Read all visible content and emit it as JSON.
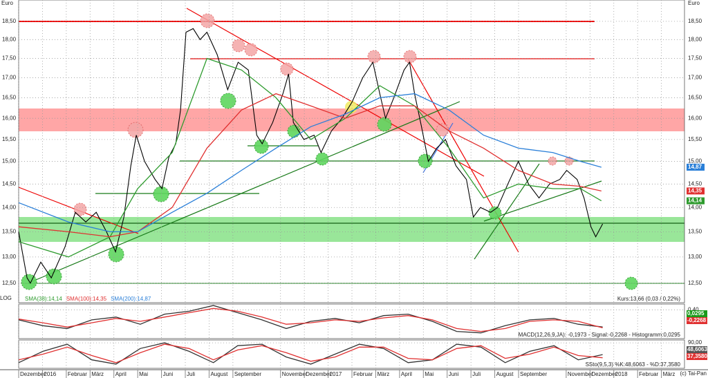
{
  "labels": {
    "currency": "Euro",
    "log": "LOG",
    "copyright": "(c) Tai-Pan"
  },
  "chart_data": [
    {
      "type": "line",
      "log": true,
      "grid": true,
      "caption": "Kurs:13,66 (0,03 / 0,22%)",
      "xlim": [
        0,
        27.97
      ],
      "ylim": [
        12.14,
        19.1
      ],
      "xticks": [
        {
          "value": 0,
          "label": "Dezember"
        },
        {
          "value": 1,
          "label": "2016"
        },
        {
          "value": 2,
          "label": "Februar"
        },
        {
          "value": 3,
          "label": "März"
        },
        {
          "value": 4,
          "label": "April"
        },
        {
          "value": 5,
          "label": "Mai"
        },
        {
          "value": 6,
          "label": "Juni"
        },
        {
          "value": 7,
          "label": "Juli"
        },
        {
          "value": 8,
          "label": "August"
        },
        {
          "value": 9,
          "label": "September"
        },
        {
          "value": 11,
          "label": "November"
        },
        {
          "value": 12,
          "label": "Dezember"
        },
        {
          "value": 13,
          "label": "2017"
        },
        {
          "value": 14,
          "label": "Februar"
        },
        {
          "value": 15,
          "label": "März"
        },
        {
          "value": 16,
          "label": "April"
        },
        {
          "value": 17,
          "label": "Mai"
        },
        {
          "value": 18,
          "label": "Juni"
        },
        {
          "value": 19,
          "label": "Juli"
        },
        {
          "value": 20,
          "label": "August"
        },
        {
          "value": 21,
          "label": "September"
        },
        {
          "value": 23,
          "label": "November"
        },
        {
          "value": 24,
          "label": "Dezember"
        },
        {
          "value": 25,
          "label": "2018"
        },
        {
          "value": 26,
          "label": "Februar"
        },
        {
          "value": 27,
          "label": "März"
        }
      ],
      "yticks": [
        {
          "value": 12.5,
          "label": "12,50"
        },
        {
          "value": 13,
          "label": "13,00"
        },
        {
          "value": 13.5,
          "label": "13,50"
        },
        {
          "value": 14,
          "label": "14,00"
        },
        {
          "value": 14.5,
          "label": "14,50"
        },
        {
          "value": 15,
          "label": "15,00"
        },
        {
          "value": 15.5,
          "label": "15,50"
        },
        {
          "value": 16,
          "label": "16,00"
        },
        {
          "value": 16.5,
          "label": "16,50"
        },
        {
          "value": 17,
          "label": "17,00"
        },
        {
          "value": 17.5,
          "label": "17,50"
        },
        {
          "value": 18,
          "label": "18,00"
        },
        {
          "value": 18.5,
          "label": "18,50"
        }
      ],
      "series": [
        {
          "color": "#000000",
          "x": [
            0,
            0.35,
            0.49,
            0.93,
            1.37,
            1.95,
            2.38,
            2.82,
            3.26,
            3.69,
            4.07,
            4.42,
            4.71,
            4.94,
            5.29,
            5.73,
            6.02,
            6.31,
            6.6,
            6.8,
            7.03,
            7.33,
            7.62,
            7.91,
            8.34,
            8.78,
            9.22,
            9.65,
            10.0,
            10.23,
            10.67,
            11.1,
            11.34,
            11.54,
            11.98,
            12.41,
            12.7,
            13.14,
            13.58,
            14.01,
            14.45,
            14.88,
            15.17,
            15.41,
            15.76,
            16.19,
            16.42,
            16.63,
            16.92,
            17.21,
            17.56,
            17.93,
            18.37,
            18.81,
            19.1,
            19.4,
            19.83,
            20.12,
            20.55,
            20.99,
            21.42,
            21.86,
            22.3,
            22.73,
            23.02,
            23.46,
            23.75,
            24.04,
            24.24,
            24.53
          ],
          "values": [
            13.5,
            12.6,
            12.5,
            12.9,
            12.6,
            13.2,
            13.9,
            13.7,
            13.9,
            13.5,
            13.1,
            13.8,
            14.9,
            15.6,
            15.0,
            14.6,
            14.4,
            15.1,
            15.4,
            16.2,
            18.2,
            18.3,
            18.0,
            18.2,
            17.6,
            16.7,
            17.4,
            17.2,
            15.6,
            15.4,
            15.9,
            16.6,
            17.1,
            15.9,
            15.5,
            15.6,
            15.2,
            15.7,
            16.0,
            16.4,
            17.0,
            17.4,
            16.6,
            16.0,
            16.5,
            17.2,
            17.4,
            16.6,
            15.8,
            15.0,
            15.3,
            15.5,
            14.9,
            14.6,
            13.8,
            14.0,
            13.9,
            14.0,
            14.5,
            15.0,
            14.5,
            14.2,
            14.5,
            14.6,
            14.8,
            14.6,
            14.2,
            13.6,
            13.4,
            13.66
          ]
        },
        {
          "name": "SMA(38):14,14",
          "tag": "14,14",
          "color": "#2e9b2e",
          "x": [
            0,
            2.09,
            3.84,
            5,
            6.45,
            7.91,
            9.36,
            10.81,
            12.27,
            13.72,
            15.17,
            16.63,
            18.08,
            19.53,
            20.99,
            22.44,
            23.6,
            24.48
          ],
          "values": [
            13.3,
            13.0,
            13.4,
            14.4,
            15.2,
            17.5,
            17.2,
            16.5,
            15.5,
            16.0,
            16.8,
            16.3,
            15.3,
            14.2,
            14.5,
            14.4,
            14.4,
            14.14
          ]
        },
        {
          "name": "SMA(100):14,35",
          "tag": "14,35",
          "color": "#e03030",
          "x": [
            0,
            2.09,
            3.84,
            5,
            6.45,
            7.91,
            9.36,
            10.81,
            12.27,
            13.72,
            15.17,
            16.63,
            18.08,
            19.53,
            20.99,
            22.44,
            23.6,
            24.48
          ],
          "values": [
            13.6,
            13.5,
            13.4,
            13.5,
            14.0,
            15.3,
            16.2,
            16.6,
            16.3,
            16.0,
            16.3,
            16.3,
            15.7,
            15.3,
            14.8,
            14.5,
            14.45,
            14.35
          ]
        },
        {
          "name": "SMA(200):14,87",
          "tag": "14,87",
          "color": "#2a7fd8",
          "x": [
            0,
            2.09,
            3.84,
            5,
            6.45,
            7.91,
            9.36,
            10.81,
            12.27,
            13.72,
            15.17,
            16.63,
            18.08,
            19.53,
            20.99,
            22.44,
            23.6,
            24.48
          ],
          "values": [
            14.1,
            13.7,
            13.5,
            13.5,
            13.9,
            14.3,
            14.8,
            15.3,
            15.8,
            16.1,
            16.5,
            16.6,
            16.2,
            15.6,
            15.3,
            15.2,
            15.0,
            14.87
          ]
        }
      ]
    },
    {
      "type": "line",
      "grid": true,
      "caption": "MACD(12,26,9,JA): -0,1973 - Signal:-0,2268 - Histogramm:0,0295",
      "xlim": [
        0,
        27.97
      ],
      "ylim": [
        -0.6,
        0.6
      ],
      "yticks": [
        {
          "value": 0.4,
          "label": "0,40"
        }
      ],
      "tags": [
        {
          "text": "0,0295",
          "color": "#1a9a1a"
        },
        {
          "text": "-0,2268",
          "color": "#e03030"
        }
      ],
      "series": [
        {
          "color": "#333333",
          "x": [
            0,
            1.02,
            2.04,
            3.07,
            4.09,
            5.11,
            6.13,
            7.16,
            8.18,
            9.2,
            10.22,
            11.24,
            12.27,
            13.29,
            14.31,
            15.33,
            16.36,
            17.38,
            18.4,
            19.42,
            20.44,
            21.47,
            22.49,
            23.51,
            24.53
          ],
          "values": [
            0.05,
            -0.15,
            -0.25,
            0.05,
            0.15,
            -0.1,
            0.25,
            0.35,
            0.55,
            0.3,
            0.05,
            -0.25,
            0.0,
            0.1,
            -0.05,
            0.2,
            0.25,
            0.0,
            -0.35,
            -0.4,
            -0.15,
            0.05,
            0.1,
            -0.1,
            -0.1973
          ]
        },
        {
          "color": "#e03030",
          "x": [
            0,
            1.02,
            2.04,
            3.07,
            4.09,
            5.11,
            6.13,
            7.16,
            8.18,
            9.2,
            10.22,
            11.24,
            12.27,
            13.29,
            14.31,
            15.33,
            16.36,
            17.38,
            18.4,
            19.42,
            20.44,
            21.47,
            22.49,
            23.51,
            24.53
          ],
          "values": [
            0.08,
            -0.05,
            -0.2,
            -0.05,
            0.1,
            0.0,
            0.15,
            0.3,
            0.45,
            0.35,
            0.15,
            -0.1,
            -0.05,
            0.05,
            0.0,
            0.12,
            0.2,
            0.05,
            -0.25,
            -0.35,
            -0.25,
            0.0,
            0.05,
            0.0,
            -0.2268
          ]
        }
      ]
    },
    {
      "type": "line",
      "grid": true,
      "caption": "SSto(9,5,3) %K:48,6063 - %D:37,3580",
      "xlim": [
        0,
        27.97
      ],
      "ylim": [
        0,
        100
      ],
      "yticks": [
        {
          "value": 90,
          "label": "90,00"
        }
      ],
      "tags": [
        {
          "text": "48,6063",
          "color": "#555555"
        },
        {
          "text": "37,3580",
          "color": "#e03030"
        }
      ],
      "series": [
        {
          "color": "#333333",
          "x": [
            0,
            1.02,
            2.04,
            3.07,
            4.09,
            5.11,
            6.13,
            7.16,
            8.18,
            9.2,
            10.22,
            11.24,
            12.27,
            13.29,
            14.31,
            15.33,
            16.36,
            17.38,
            18.4,
            19.42,
            20.44,
            21.47,
            22.49,
            23.51,
            24.53
          ],
          "values": [
            20,
            60,
            85,
            30,
            15,
            70,
            90,
            60,
            20,
            80,
            85,
            40,
            15,
            50,
            85,
            70,
            20,
            30,
            85,
            75,
            20,
            60,
            80,
            30,
            48.6063
          ]
        },
        {
          "color": "#e03030",
          "x": [
            0,
            1.02,
            2.04,
            3.07,
            4.09,
            5.11,
            6.13,
            7.16,
            8.18,
            9.2,
            10.22,
            11.24,
            12.27,
            13.29,
            14.31,
            15.33,
            16.36,
            17.38,
            18.4,
            19.42,
            20.44,
            21.47,
            22.49,
            23.51,
            24.53
          ],
          "values": [
            30,
            50,
            75,
            45,
            20,
            55,
            85,
            70,
            30,
            65,
            80,
            55,
            25,
            40,
            75,
            75,
            35,
            30,
            70,
            80,
            35,
            50,
            75,
            45,
            37.358
          ]
        }
      ]
    }
  ]
}
